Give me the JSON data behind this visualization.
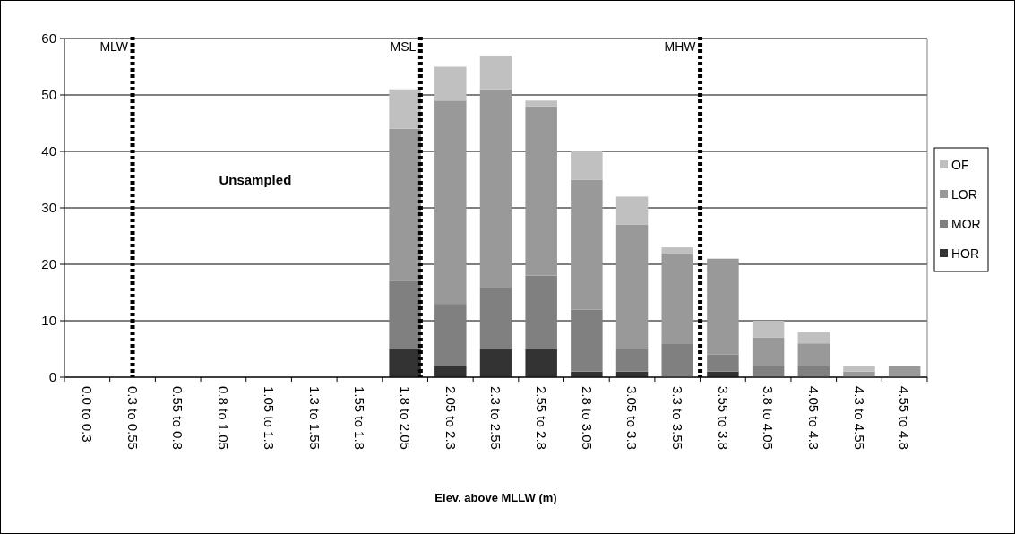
{
  "chart_data": {
    "type": "bar",
    "stacked": true,
    "xlabel": "Elev. above MLLW (m)",
    "categories": [
      "0.0 to 0.3",
      "0.3 to 0.55",
      "0.55 to 0.8",
      "0.8 to 1.05",
      "1.05 to 1.3",
      "1.3 to 1.55",
      "1.55 to 1.8",
      "1.8 to 2.05",
      "2.05 to 2.3",
      "2.3 to 2.55",
      "2.55 to 2.8",
      "2.8 to 3.05",
      "3.05 to 3.3",
      "3.3 to 3.55",
      "3.55 to 3.8",
      "3.8 to 4.05",
      "4.05 to 4.3",
      "4.3 to 4.55",
      "4.55 to 4.8"
    ],
    "series": [
      {
        "name": "HOR",
        "color": "#333333",
        "values": [
          0,
          0,
          0,
          0,
          0,
          0,
          0,
          5,
          2,
          5,
          5,
          1,
          1,
          0,
          1,
          0,
          0,
          0,
          0
        ]
      },
      {
        "name": "MOR",
        "color": "#808080",
        "values": [
          0,
          0,
          0,
          0,
          0,
          0,
          0,
          12,
          11,
          11,
          13,
          11,
          4,
          6,
          3,
          2,
          2,
          0,
          0
        ]
      },
      {
        "name": "LOR",
        "color": "#999999",
        "values": [
          0,
          0,
          0,
          0,
          0,
          0,
          0,
          27,
          36,
          35,
          30,
          23,
          22,
          16,
          17,
          5,
          4,
          1,
          2
        ]
      },
      {
        "name": "OF",
        "color": "#c0c0c0",
        "values": [
          0,
          0,
          0,
          0,
          0,
          0,
          0,
          7,
          6,
          6,
          1,
          5,
          5,
          1,
          0,
          3,
          2,
          1,
          0
        ]
      }
    ],
    "ylim": [
      0,
      60
    ],
    "yticks": [
      0,
      10,
      20,
      30,
      40,
      50,
      60
    ],
    "grid": "y",
    "legend": "right",
    "ref_lines": [
      {
        "axis": "x",
        "value": "0.3 to 0.55",
        "label": "MLW",
        "line_style": "dotted",
        "color": "#000000"
      }
    ],
    "annotations": [
      "Unsampled",
      "MSL",
      "MHW"
    ]
  }
}
